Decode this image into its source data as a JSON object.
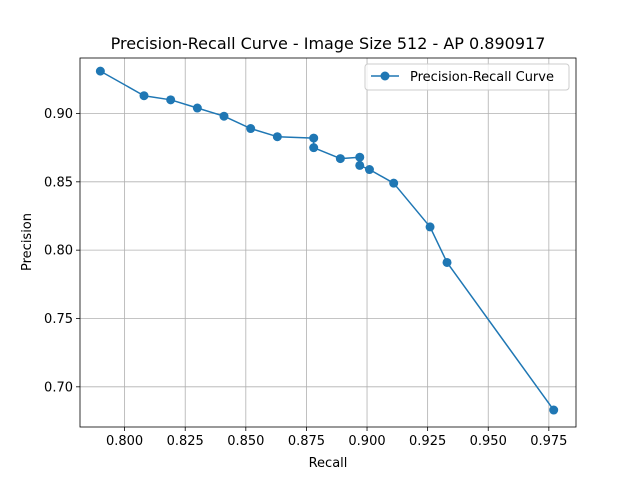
{
  "chart_data": {
    "type": "line",
    "title": "Precision-Recall Curve - Image Size 512 - AP 0.890917",
    "xlabel": "Recall",
    "ylabel": "Precision",
    "xlim": [
      0.7816,
      0.9862
    ],
    "ylim": [
      0.6706,
      0.9406
    ],
    "xticks": [
      "0.800",
      "0.825",
      "0.850",
      "0.875",
      "0.900",
      "0.925",
      "0.950",
      "0.975"
    ],
    "yticks": [
      "0.70",
      "0.75",
      "0.80",
      "0.85",
      "0.90"
    ],
    "grid": true,
    "legend_position": "top-right",
    "series": [
      {
        "name": "Precision-Recall Curve",
        "color": "#1f77b4",
        "marker": "circle",
        "points": [
          {
            "x": 0.79,
            "y": 0.931
          },
          {
            "x": 0.808,
            "y": 0.913
          },
          {
            "x": 0.819,
            "y": 0.91
          },
          {
            "x": 0.83,
            "y": 0.904
          },
          {
            "x": 0.841,
            "y": 0.898
          },
          {
            "x": 0.852,
            "y": 0.889
          },
          {
            "x": 0.863,
            "y": 0.883
          },
          {
            "x": 0.878,
            "y": 0.882
          },
          {
            "x": 0.878,
            "y": 0.875
          },
          {
            "x": 0.889,
            "y": 0.867
          },
          {
            "x": 0.897,
            "y": 0.868
          },
          {
            "x": 0.897,
            "y": 0.862
          },
          {
            "x": 0.901,
            "y": 0.859
          },
          {
            "x": 0.911,
            "y": 0.849
          },
          {
            "x": 0.926,
            "y": 0.817
          },
          {
            "x": 0.933,
            "y": 0.791
          },
          {
            "x": 0.977,
            "y": 0.683
          }
        ]
      }
    ]
  }
}
